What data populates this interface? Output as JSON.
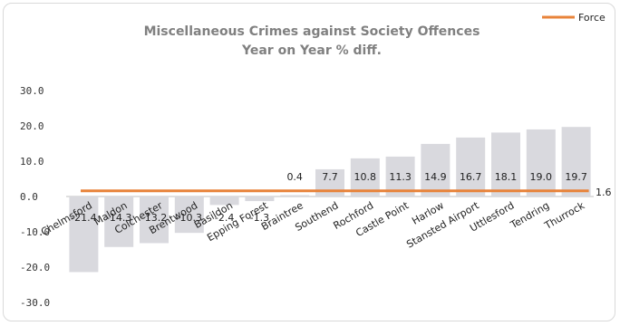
{
  "chart_data": {
    "type": "bar",
    "title_lines": [
      "Miscellaneous Crimes against Society Offences",
      "Year on Year % diff."
    ],
    "categories": [
      "Chelmsford",
      "Maldon",
      "Colchester",
      "Brentwood",
      "Basildon",
      "Epping Forest",
      "Braintree",
      "Southend",
      "Rochford",
      "Castle Point",
      "Harlow",
      "Stansted Airport",
      "Uttlesford",
      "Tendring",
      "Thurrock"
    ],
    "values": [
      -21.4,
      -14.3,
      -13.2,
      -10.3,
      -2.4,
      -1.3,
      0.4,
      7.7,
      10.8,
      11.3,
      14.9,
      16.7,
      18.1,
      19.0,
      19.7
    ],
    "value_labels": [
      "-21.4",
      "-14.3",
      "-13.2",
      "-10.3",
      "-2.4",
      "-1.3",
      "0.4",
      "7.7",
      "10.8",
      "11.3",
      "14.9",
      "16.7",
      "18.1",
      "19.0",
      "19.7"
    ],
    "yticks": [
      "30.0",
      "20.0",
      "10.0",
      "0.0",
      "-10.0",
      "-20.0",
      "-30.0"
    ],
    "ytick_values": [
      30,
      20,
      10,
      0,
      -10,
      -20,
      -30
    ],
    "ylim": [
      -30,
      30
    ],
    "bar_color": "#d9d9de",
    "reference_line": {
      "name": "Force",
      "value": 1.6,
      "label": "1.6",
      "color": "#e8833a"
    },
    "legend": {
      "position": "top-right",
      "entries": [
        "Force"
      ]
    },
    "grid": false
  }
}
